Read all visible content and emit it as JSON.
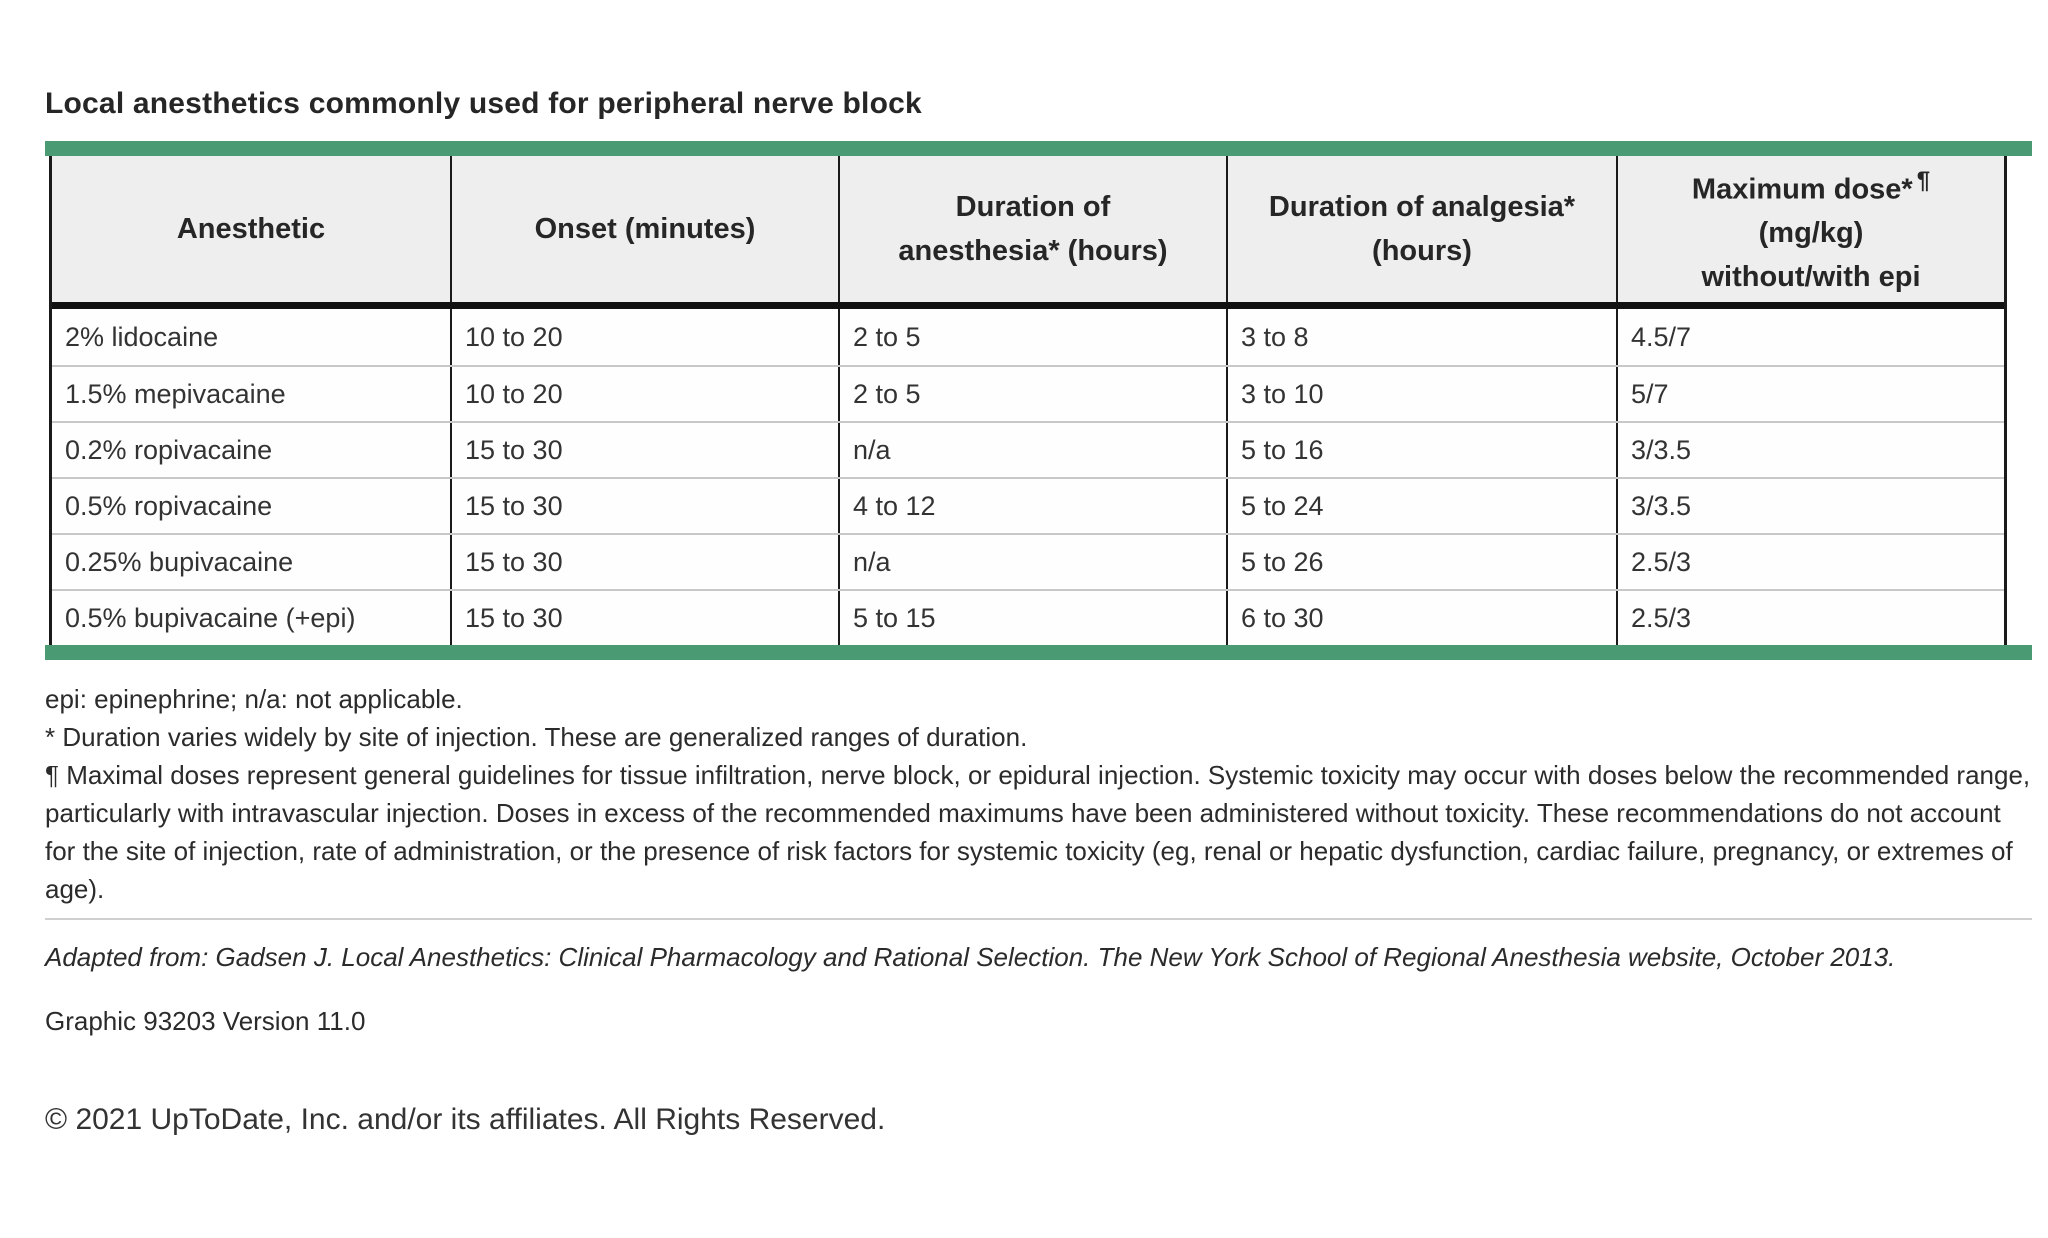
{
  "title": "Local anesthetics commonly used for peripheral nerve block",
  "colors": {
    "accent_green": "#4a9b74",
    "header_bg": "#efeeee",
    "border_dark": "#1a1a1a",
    "row_divider": "#c8c8c8"
  },
  "table": {
    "columns": [
      {
        "label": "Anesthetic"
      },
      {
        "label": "Onset (minutes)"
      },
      {
        "label": "Duration of\nanesthesia* (hours)"
      },
      {
        "label": "Duration of analgesia*\n(hours)"
      },
      {
        "label_main": "Maximum dose*",
        "label_sup": "¶",
        "label_rest": "(mg/kg)\nwithout/with epi"
      }
    ],
    "rows": [
      [
        "2% lidocaine",
        "10 to 20",
        "2 to 5",
        "3 to 8",
        "4.5/7"
      ],
      [
        "1.5% mepivacaine",
        "10 to 20",
        "2 to 5",
        "3 to 10",
        "5/7"
      ],
      [
        "0.2% ropivacaine",
        "15 to 30",
        "n/a",
        "5 to 16",
        "3/3.5"
      ],
      [
        "0.5% ropivacaine",
        "15 to 30",
        "4 to 12",
        "5 to 24",
        "3/3.5"
      ],
      [
        "0.25% bupivacaine",
        "15 to 30",
        "n/a",
        "5 to 26",
        "2.5/3"
      ],
      [
        "0.5% bupivacaine (+epi)",
        "15 to 30",
        "5 to 15",
        "6 to 30",
        "2.5/3"
      ]
    ]
  },
  "footnotes": {
    "abbrev": "epi: epinephrine; n/a: not applicable.",
    "asterisk": "* Duration varies widely by site of injection. These are generalized ranges of duration.",
    "pilcrow": "¶ Maximal doses represent general guidelines for tissue infiltration, nerve block, or epidural injection. Systemic toxicity may occur with doses below the recommended range, particularly with intravascular injection. Doses in excess of the recommended maximums have been administered without toxicity. These recommendations do not account for the site of injection, rate of administration, or the presence of risk factors for systemic toxicity (eg, renal or hepatic dysfunction, cardiac failure, pregnancy, or extremes of age)."
  },
  "citation": "Adapted from: Gadsen J. Local Anesthetics: Clinical Pharmacology and Rational Selection. The New York School of Regional Anesthesia website, October 2013.",
  "graphic_version": "Graphic 93203 Version 11.0",
  "copyright": "© 2021 UpToDate, Inc. and/or its affiliates. All Rights Reserved."
}
